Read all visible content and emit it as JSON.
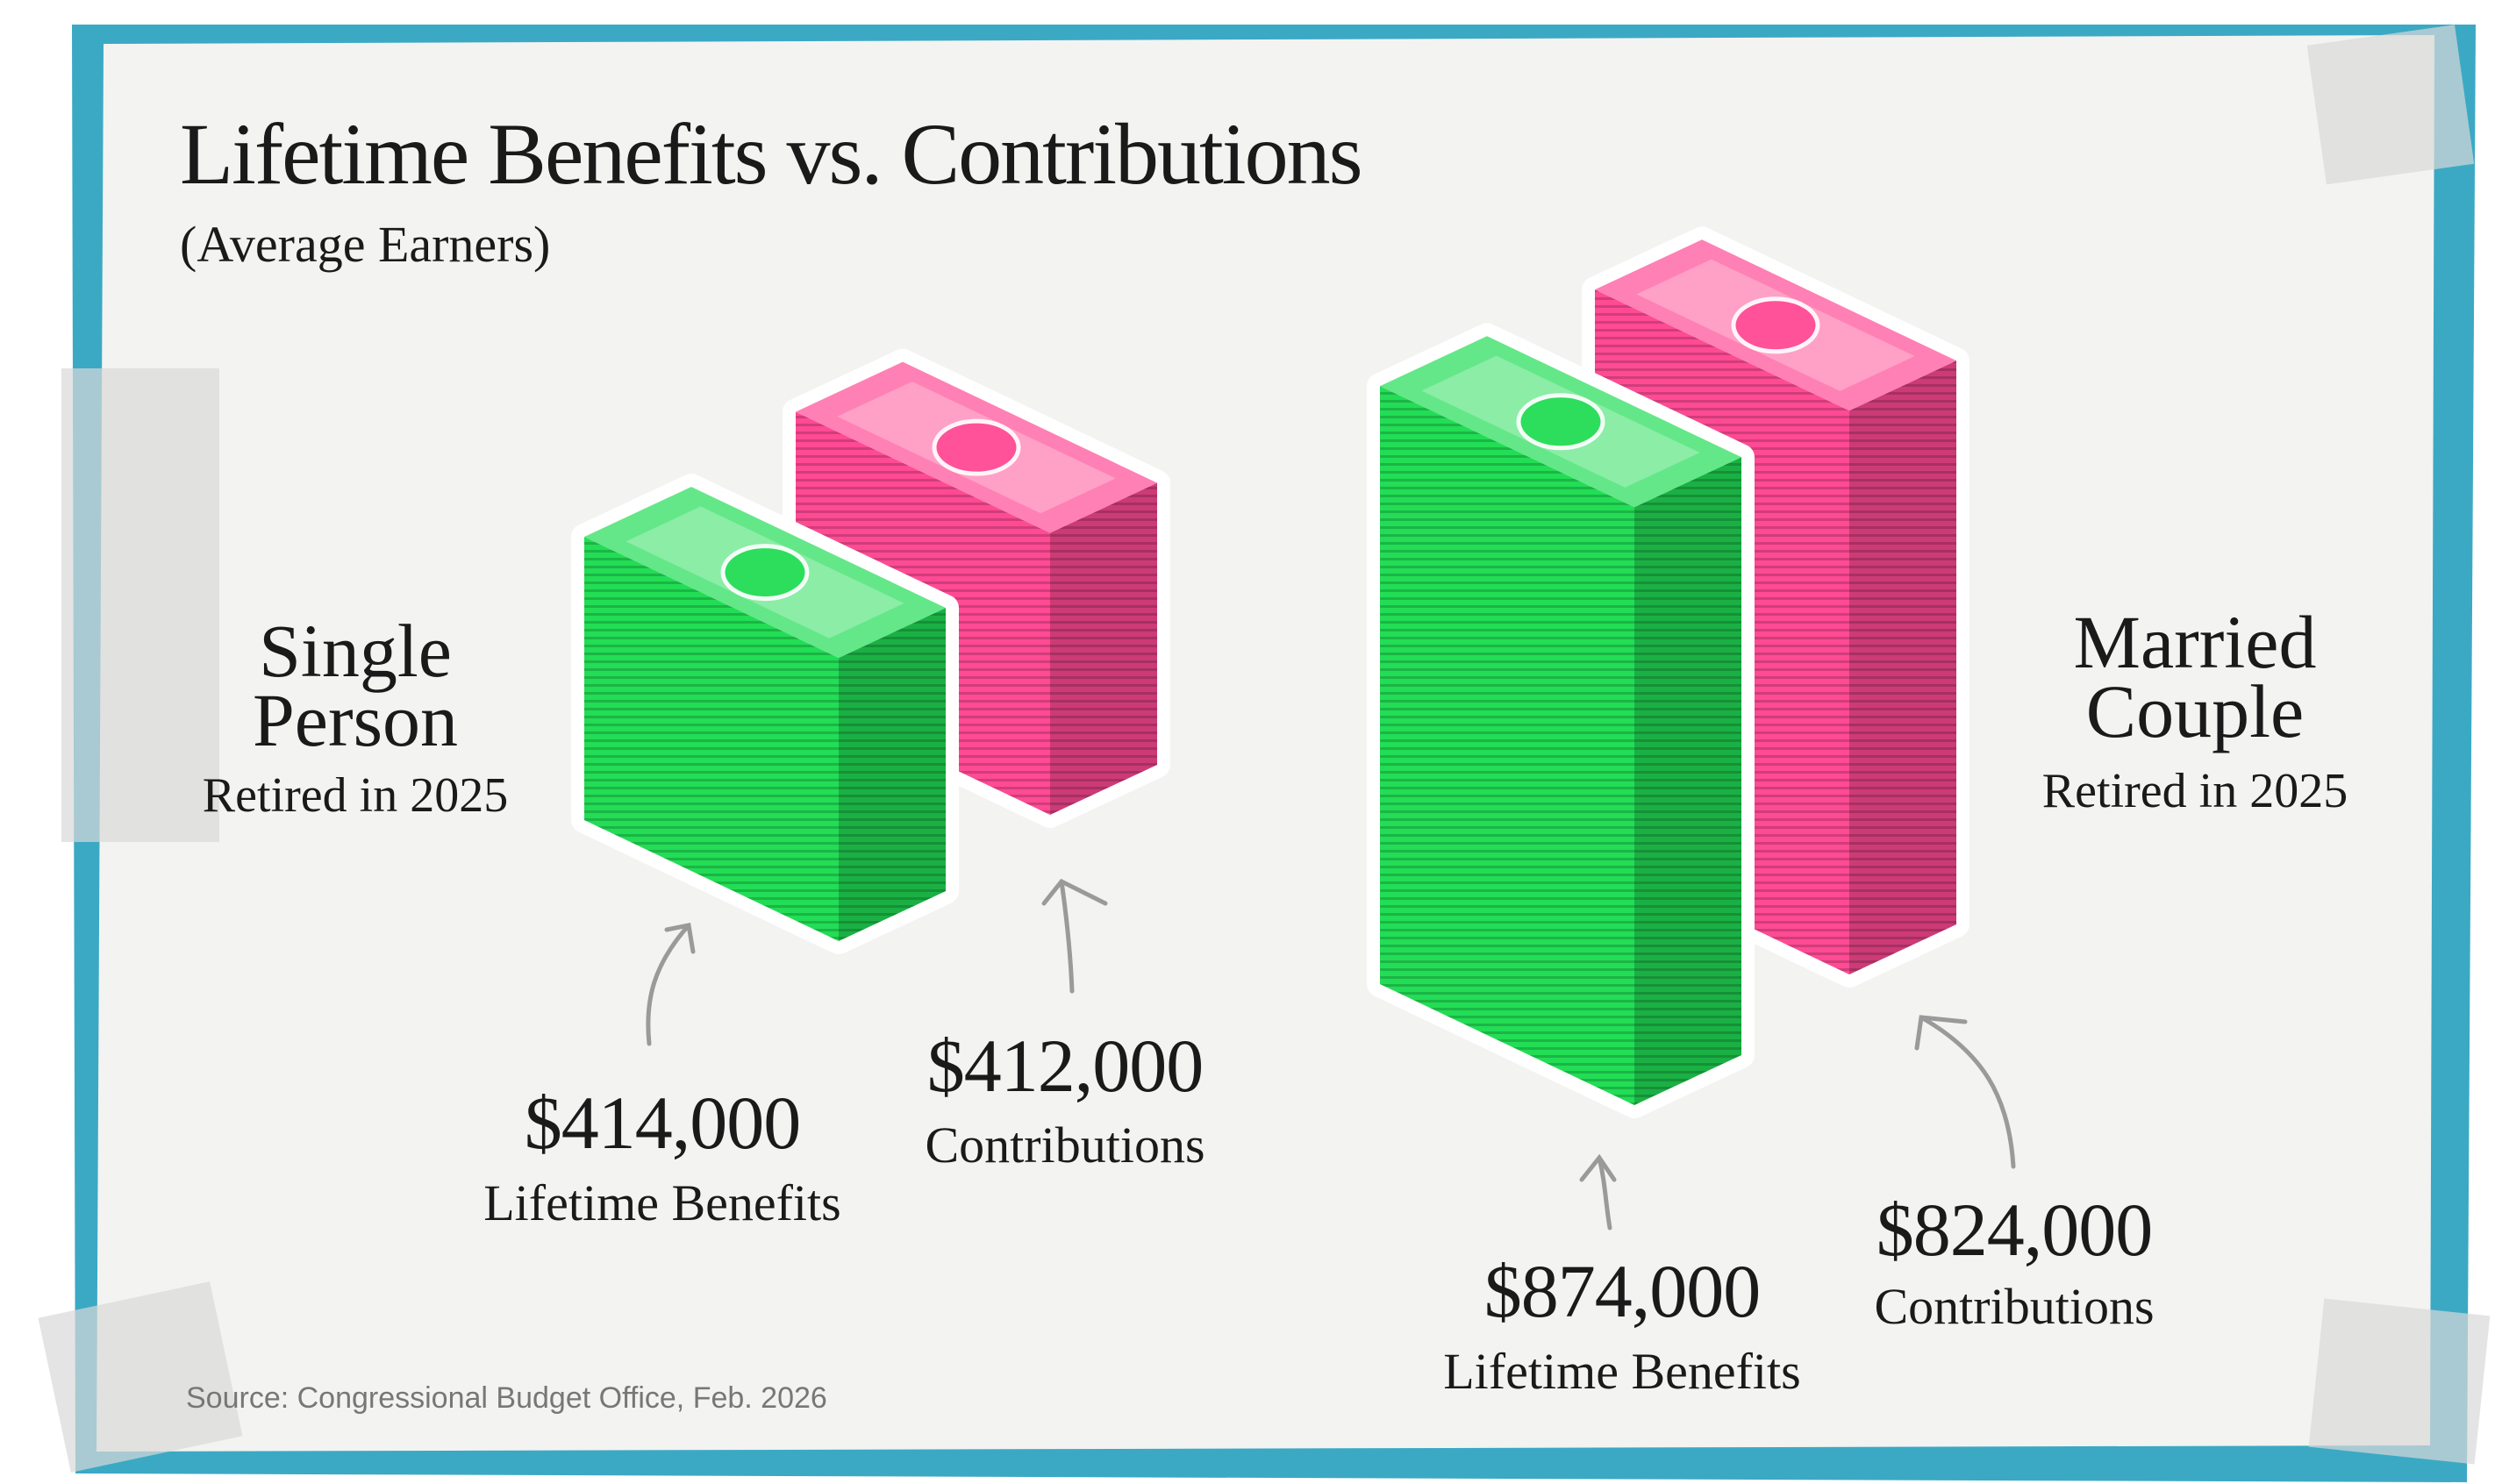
{
  "chart_data": {
    "type": "bar",
    "title": "Lifetime Benefits vs. Contributions",
    "subtitle": "(Average Earners)",
    "categories": [
      "Single Person",
      "Married Couple"
    ],
    "category_notes": [
      "Retired in 2025",
      "Retired in 2025"
    ],
    "series": [
      {
        "name": "Lifetime Benefits",
        "color": "#22dd55",
        "values": [
          414000,
          874000
        ],
        "value_labels": [
          "$414,000",
          "$874,000"
        ]
      },
      {
        "name": "Contributions",
        "color": "#ff4a94",
        "values": [
          412000,
          824000
        ],
        "value_labels": [
          "$412,000",
          "$824,000"
        ]
      }
    ],
    "source": "Source: Congressional Budget Office, Feb. 2026"
  }
}
